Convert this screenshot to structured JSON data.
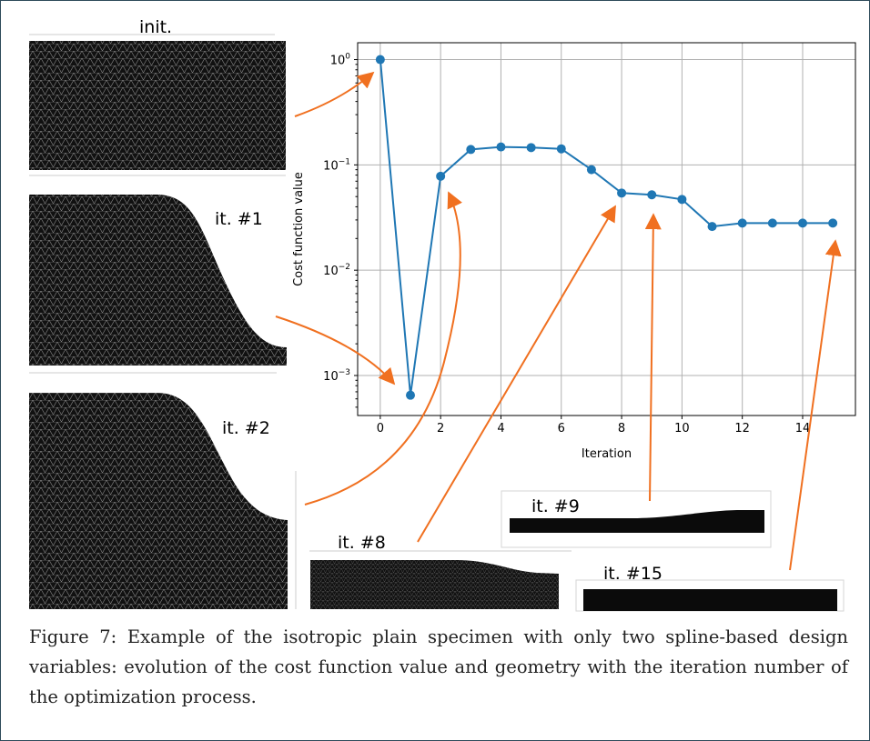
{
  "figure": {
    "caption": "Figure 7: Example of the isotropic plain specimen with only two spline-based design variables: evolution of the cost function value and geometry with the iteration number of the optimization process.",
    "mesh_labels": {
      "init": "init.",
      "it1": "it. #1",
      "it2": "it. #2",
      "it8": "it. #8",
      "it9": "it. #9",
      "it15": "it. #15"
    },
    "colors": {
      "series": "#1f77b4",
      "arrow": "#f07020",
      "mesh": "#111111",
      "grid": "#b0b0b0"
    }
  },
  "chart_data": {
    "type": "line",
    "xlabel": "Iteration",
    "ylabel": "Cost function value",
    "yscale": "log",
    "xlim": [
      -0.75,
      15.75
    ],
    "ylim_exp": [
      -3.38,
      0.16
    ],
    "grid": true,
    "x_ticks": [
      0,
      2,
      4,
      6,
      8,
      10,
      12,
      14
    ],
    "y_ticks": [
      {
        "exp": 0,
        "label": "10",
        "sup": "0"
      },
      {
        "exp": -1,
        "label": "10",
        "sup": "−1"
      },
      {
        "exp": -2,
        "label": "10",
        "sup": "−2"
      },
      {
        "exp": -3,
        "label": "10",
        "sup": "−3"
      }
    ],
    "x": [
      0,
      1,
      2,
      3,
      4,
      5,
      6,
      7,
      8,
      9,
      10,
      11,
      12,
      13,
      14,
      15
    ],
    "y": [
      1.0,
      0.00065,
      0.078,
      0.14,
      0.148,
      0.146,
      0.142,
      0.09,
      0.054,
      0.052,
      0.047,
      0.026,
      0.028,
      0.028,
      0.028,
      0.028
    ]
  }
}
